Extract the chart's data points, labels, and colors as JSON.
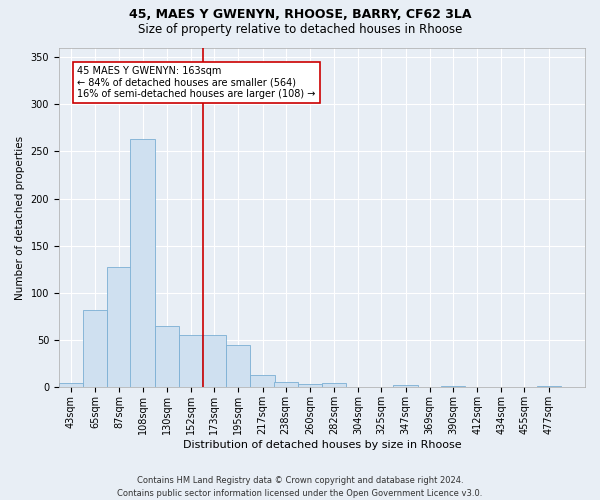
{
  "title1": "45, MAES Y GWENYN, RHOOSE, BARRY, CF62 3LA",
  "title2": "Size of property relative to detached houses in Rhoose",
  "xlabel": "Distribution of detached houses by size in Rhoose",
  "ylabel": "Number of detached properties",
  "footer": "Contains HM Land Registry data © Crown copyright and database right 2024.\nContains public sector information licensed under the Open Government Licence v3.0.",
  "bin_labels": [
    "43sqm",
    "65sqm",
    "87sqm",
    "108sqm",
    "130sqm",
    "152sqm",
    "173sqm",
    "195sqm",
    "217sqm",
    "238sqm",
    "260sqm",
    "282sqm",
    "304sqm",
    "325sqm",
    "347sqm",
    "369sqm",
    "390sqm",
    "412sqm",
    "434sqm",
    "455sqm",
    "477sqm"
  ],
  "bar_values": [
    5,
    82,
    128,
    263,
    65,
    55,
    55,
    45,
    13,
    6,
    4,
    5,
    0,
    0,
    3,
    0,
    2,
    0,
    0,
    0,
    2
  ],
  "bar_color": "#cfe0f0",
  "bar_edge_color": "#7bafd4",
  "vline_color": "#cc0000",
  "annotation_text": "45 MAES Y GWENYN: 163sqm\n← 84% of detached houses are smaller (564)\n16% of semi-detached houses are larger (108) →",
  "annotation_box_color": "#ffffff",
  "annotation_box_edge_color": "#cc0000",
  "ylim": [
    0,
    360
  ],
  "yticks": [
    0,
    50,
    100,
    150,
    200,
    250,
    300,
    350
  ],
  "bg_color": "#e8eef5",
  "plot_bg_color": "#e8eef5",
  "title1_fontsize": 9,
  "title2_fontsize": 8.5,
  "xlabel_fontsize": 8,
  "ylabel_fontsize": 7.5,
  "tick_fontsize": 7,
  "ann_fontsize": 7,
  "footer_fontsize": 6,
  "bin_width": 22
}
